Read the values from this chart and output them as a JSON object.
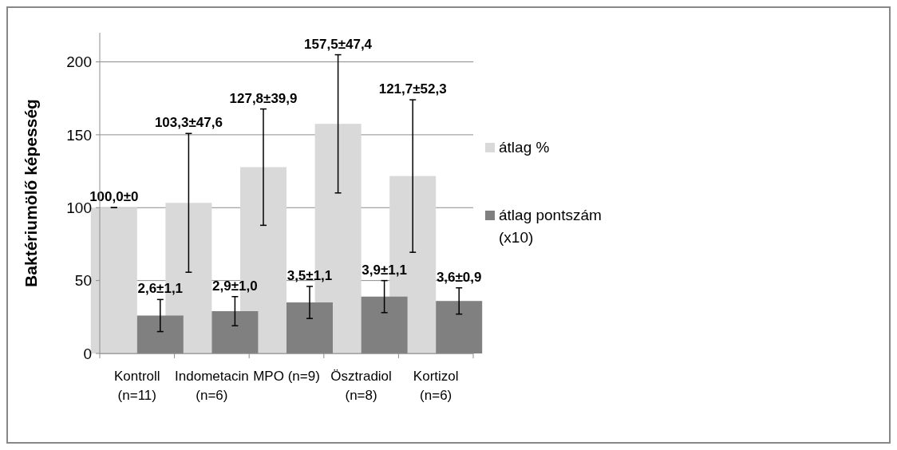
{
  "chart_data": {
    "type": "bar",
    "ylabel": "Baktériumölő képesség",
    "categories": [
      "Kontroll\n(n=11)",
      "Indometacin\n(n=6)",
      "MPO (n=9)",
      "Ösztradiol\n(n=8)",
      "Kortizol\n(n=6)"
    ],
    "series": [
      {
        "name": "átlag %",
        "color": "#d9d9d9",
        "values": [
          100.0,
          103.3,
          127.8,
          157.5,
          121.7
        ],
        "errors": [
          0,
          47.6,
          39.9,
          47.4,
          52.3
        ]
      },
      {
        "name": "átlag pontszám\n(x10)",
        "color": "#808080",
        "values": [
          26,
          29,
          35,
          39,
          36
        ],
        "errors": [
          11,
          10,
          11,
          11,
          9
        ]
      }
    ],
    "annotations": [
      "100,0±0",
      "103,3±47,6",
      "127,8±39,9",
      "157,5±47,4",
      "121,7±52,3",
      {
        "text": "2,6±1,1",
        "x": "Kontroll\n(n=11)",
        "y": 26
      },
      {
        "text": "2,9±1,0",
        "x": "Indometacin\n(n=6)",
        "y": 29
      },
      {
        "text": "3,5±1,1",
        "x": "MPO (n=9)",
        "y": 35
      },
      {
        "text": "3,9±1,1",
        "x": "Ösztradiol\n(n=8)",
        "y": 39
      },
      {
        "text": "3,6±0,9",
        "x": "Kortizol\n(n=6)",
        "y": 36
      }
    ],
    "ylim": [
      0,
      220
    ],
    "yticks": [
      0,
      50,
      100,
      150,
      200
    ],
    "grid": "y",
    "legend": "right"
  }
}
